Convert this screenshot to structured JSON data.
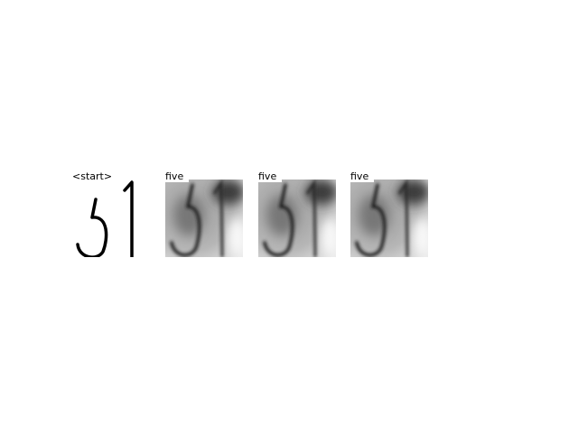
{
  "panels": [
    {
      "label": "<start>",
      "style": "clean"
    },
    {
      "label": "five",
      "style": "blurred"
    },
    {
      "label": "five",
      "style": "blurred"
    },
    {
      "label": "five",
      "style": "blurred"
    }
  ]
}
